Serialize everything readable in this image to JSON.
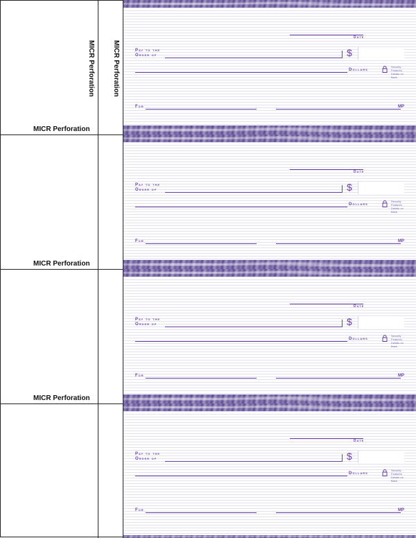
{
  "stub": {
    "perforation_label": "MICR Perforation"
  },
  "checks": [
    {
      "date_label": "Date",
      "pay_label_1": "Pay to the",
      "pay_label_2": "Order of",
      "dollar_sign": "$",
      "dollars_label": "Dollars",
      "security_text": "Security Features Details on Back",
      "for_label": "For",
      "mp_label": "MP"
    },
    {
      "date_label": "Date",
      "pay_label_1": "Pay to the",
      "pay_label_2": "Order of",
      "dollar_sign": "$",
      "dollars_label": "Dollars",
      "security_text": "Security Features Details on Back",
      "for_label": "For",
      "mp_label": "MP"
    },
    {
      "date_label": "Date",
      "pay_label_1": "Pay to the",
      "pay_label_2": "Order of",
      "dollar_sign": "$",
      "dollars_label": "Dollars",
      "security_text": "Security Features Details on Back",
      "for_label": "For",
      "mp_label": "MP"
    },
    {
      "date_label": "Date",
      "pay_label_1": "Pay to the",
      "pay_label_2": "Order of",
      "dollar_sign": "$",
      "dollars_label": "Dollars",
      "security_text": "Security Features Details on Back",
      "for_label": "For",
      "mp_label": "MP"
    }
  ],
  "colors": {
    "accent": "#6b3fa0",
    "band": "#6a5a9c",
    "rule": "#e3e3f0"
  }
}
